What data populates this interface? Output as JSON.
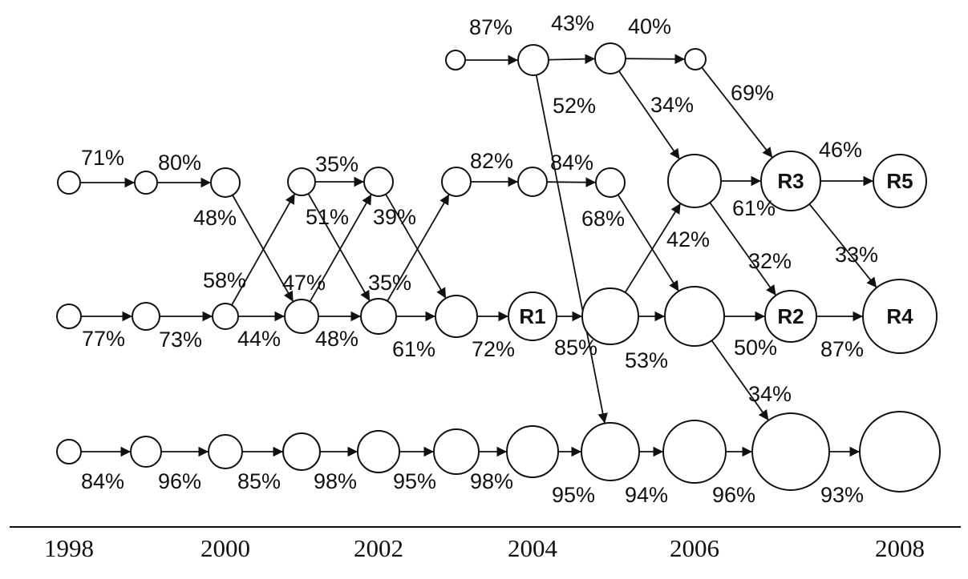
{
  "timeline": {
    "years": [
      "1998",
      "2000",
      "2002",
      "2004",
      "2006",
      "2008"
    ]
  },
  "nodes": [
    {
      "id": "a0",
      "label": ""
    },
    {
      "id": "a1",
      "label": ""
    },
    {
      "id": "a2",
      "label": ""
    },
    {
      "id": "a3",
      "label": ""
    },
    {
      "id": "b0",
      "label": ""
    },
    {
      "id": "b1",
      "label": ""
    },
    {
      "id": "b2",
      "label": ""
    },
    {
      "id": "b3",
      "label": ""
    },
    {
      "id": "b4",
      "label": ""
    },
    {
      "id": "b5",
      "label": ""
    },
    {
      "id": "b6",
      "label": ""
    },
    {
      "id": "b7",
      "label": ""
    },
    {
      "id": "b8",
      "label": ""
    },
    {
      "id": "b9",
      "label": "R3"
    },
    {
      "id": "b10",
      "label": "R5"
    },
    {
      "id": "c0",
      "label": ""
    },
    {
      "id": "c1",
      "label": ""
    },
    {
      "id": "c2",
      "label": ""
    },
    {
      "id": "c3",
      "label": ""
    },
    {
      "id": "c4",
      "label": ""
    },
    {
      "id": "c5",
      "label": ""
    },
    {
      "id": "c6",
      "label": "R1"
    },
    {
      "id": "c7",
      "label": ""
    },
    {
      "id": "c8",
      "label": ""
    },
    {
      "id": "c9",
      "label": "R2"
    },
    {
      "id": "c10",
      "label": "R4"
    },
    {
      "id": "d0",
      "label": ""
    },
    {
      "id": "d1",
      "label": ""
    },
    {
      "id": "d2",
      "label": ""
    },
    {
      "id": "d3",
      "label": ""
    },
    {
      "id": "d4",
      "label": ""
    },
    {
      "id": "d5",
      "label": ""
    },
    {
      "id": "d6",
      "label": ""
    },
    {
      "id": "d7",
      "label": ""
    },
    {
      "id": "d8",
      "label": ""
    },
    {
      "id": "d9",
      "label": ""
    },
    {
      "id": "d10",
      "label": ""
    }
  ],
  "edges": [
    {
      "from": "a0",
      "to": "a1",
      "label": "87%"
    },
    {
      "from": "a1",
      "to": "a2",
      "label": "43%"
    },
    {
      "from": "a2",
      "to": "a3",
      "label": "40%"
    },
    {
      "from": "a1",
      "to": "d7",
      "label": "52%"
    },
    {
      "from": "a2",
      "to": "b8",
      "label": "34%"
    },
    {
      "from": "a3",
      "to": "b9",
      "label": "69%"
    },
    {
      "from": "b0",
      "to": "b1",
      "label": "71%"
    },
    {
      "from": "b1",
      "to": "b2",
      "label": "80%"
    },
    {
      "from": "b2",
      "to": "c3",
      "label": "48%"
    },
    {
      "from": "b3",
      "to": "b4",
      "label": "35%"
    },
    {
      "from": "b3",
      "to": "c4",
      "label": "51%"
    },
    {
      "from": "b4",
      "to": "c5",
      "label": "39%"
    },
    {
      "from": "b5",
      "to": "b6",
      "label": "82%"
    },
    {
      "from": "b6",
      "to": "b7",
      "label": "84%"
    },
    {
      "from": "b7",
      "to": "c8",
      "label": "68%"
    },
    {
      "from": "b8",
      "to": "b9",
      "label": ""
    },
    {
      "from": "b8",
      "to": "c9",
      "label": "61%"
    },
    {
      "from": "b9",
      "to": "b10",
      "label": "46%"
    },
    {
      "from": "b9",
      "to": "c10",
      "label": "33%"
    },
    {
      "from": "c0",
      "to": "c1",
      "label": "77%"
    },
    {
      "from": "c1",
      "to": "c2",
      "label": "73%"
    },
    {
      "from": "c2",
      "to": "b3",
      "label": "58%"
    },
    {
      "from": "c2",
      "to": "c3",
      "label": "44%"
    },
    {
      "from": "c3",
      "to": "b4",
      "label": "47%"
    },
    {
      "from": "c3",
      "to": "c4",
      "label": "48%"
    },
    {
      "from": "c4",
      "to": "b5",
      "label": "35%"
    },
    {
      "from": "c4",
      "to": "c5",
      "label": "61%"
    },
    {
      "from": "c5",
      "to": "c6",
      "label": "72%"
    },
    {
      "from": "c6",
      "to": "c7",
      "label": ""
    },
    {
      "from": "c7",
      "to": "b8",
      "label": "42%"
    },
    {
      "from": "c7",
      "to": "c8",
      "label": "53%"
    },
    {
      "from": "c8",
      "to": "c9",
      "label": "32%"
    },
    {
      "from": "c8",
      "to": "d9",
      "label": "34%"
    },
    {
      "from": "c9",
      "to": "c10",
      "label": "87%"
    },
    {
      "from": "d0",
      "to": "d1",
      "label": "84%"
    },
    {
      "from": "d1",
      "to": "d2",
      "label": "96%"
    },
    {
      "from": "d2",
      "to": "d3",
      "label": "85%"
    },
    {
      "from": "d3",
      "to": "d4",
      "label": "98%"
    },
    {
      "from": "d4",
      "to": "d5",
      "label": "95%"
    },
    {
      "from": "d5",
      "to": "d6",
      "label": "98%"
    },
    {
      "from": "d6",
      "to": "d7",
      "label": "95%"
    },
    {
      "from": "d7",
      "to": "d8",
      "label": "94%"
    },
    {
      "from": "d8",
      "to": "d9",
      "label": "96%"
    },
    {
      "from": "d9",
      "to": "d10",
      "label": "93%"
    }
  ],
  "extra_labels": [
    "85%",
    "50%"
  ]
}
